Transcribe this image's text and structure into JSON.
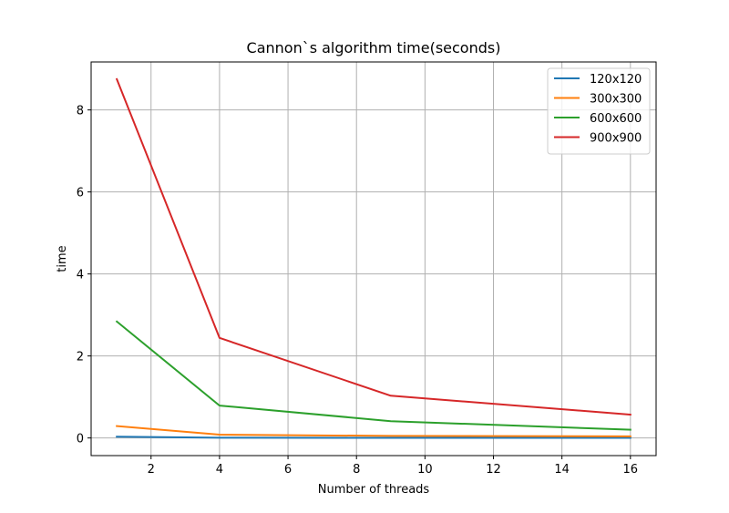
{
  "chart_data": {
    "type": "line",
    "title": "Cannon`s algorithm time(seconds)",
    "xlabel": "Number of threads",
    "ylabel": "time",
    "x": [
      1,
      4,
      9,
      16
    ],
    "series": [
      {
        "name": "120x120",
        "values": [
          0.03,
          0.005,
          0.004,
          0.003
        ],
        "color": "#1f77b4"
      },
      {
        "name": "300x300",
        "values": [
          0.29,
          0.08,
          0.05,
          0.04
        ],
        "color": "#ff7f0e"
      },
      {
        "name": "600x600",
        "values": [
          2.84,
          0.79,
          0.41,
          0.2
        ],
        "color": "#2ca02c"
      },
      {
        "name": "900x900",
        "values": [
          8.75,
          2.44,
          1.03,
          0.57
        ],
        "color": "#d62728"
      }
    ],
    "xlim": [
      0.25,
      16.75
    ],
    "ylim": [
      -0.43,
      9.17
    ],
    "xticks": [
      2,
      4,
      6,
      8,
      10,
      12,
      14,
      16
    ],
    "yticks": [
      0,
      2,
      4,
      6,
      8
    ],
    "grid": true,
    "legend_position": "top-right"
  }
}
